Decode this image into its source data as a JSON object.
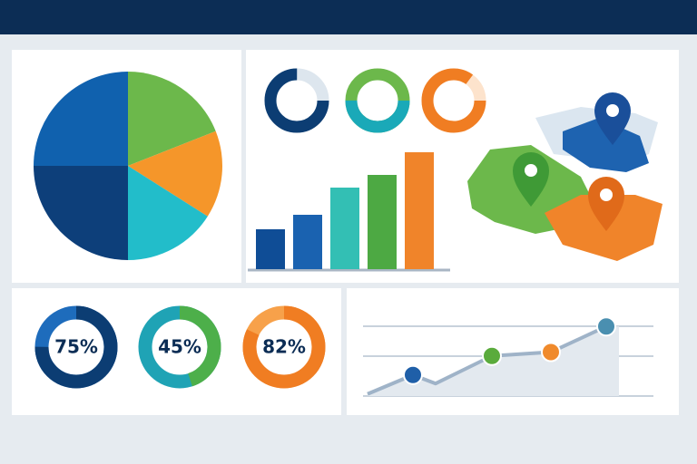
{
  "chart_data": [
    {
      "type": "pie",
      "values": [
        19,
        15,
        16,
        25,
        25
      ],
      "colors": [
        "#6cb84b",
        "#f5962a",
        "#22bdca",
        "#0d3f7a",
        "#1061ae"
      ]
    },
    {
      "type": "donut",
      "values": [
        75,
        50,
        85
      ],
      "colors": [
        "#0c3d73",
        "#1aa9b8",
        "#f07d22"
      ],
      "track_colors": [
        "#dde6ee",
        "#6cb84b",
        "#fde3cc"
      ]
    },
    {
      "type": "bar",
      "values": [
        44,
        60,
        90,
        104,
        129
      ],
      "colors": [
        "#0f4d96",
        "#1a62b0",
        "#33bfb4",
        "#4da943",
        "#f0842a"
      ],
      "ylim": [
        0,
        130
      ]
    },
    {
      "type": "donut",
      "values": [
        75,
        45,
        82
      ],
      "value_labels": [
        "75%",
        "45%",
        "82%"
      ],
      "colors": [
        "#0c3d73",
        "#4daf4a",
        "#f07d22"
      ],
      "track_colors": [
        "#1e6cbc",
        "#1fa3b5",
        "#f7a14a"
      ]
    },
    {
      "type": "line",
      "values": [
        5,
        25,
        16,
        45,
        49,
        76
      ],
      "ylim": [
        0,
        100
      ],
      "color": "#9fb3c8",
      "markers": [
        false,
        true,
        false,
        true,
        true,
        true
      ],
      "marker_colors": [
        null,
        "#1f5fa8",
        null,
        "#5aab3c",
        "#f08a2c",
        "#4a8fb0"
      ]
    }
  ]
}
